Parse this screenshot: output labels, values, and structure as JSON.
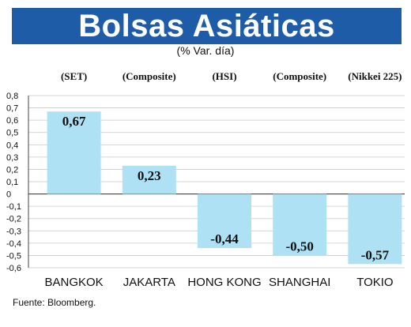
{
  "header": {
    "title": "Bolsas Asiáticas",
    "subtitle": "(% Var. día)"
  },
  "source": "Fuente: Bloomberg.",
  "colors": {
    "banner": "#1f5ca8",
    "bar": "#aee1f4",
    "grid": "#c8c8c8"
  },
  "chart_data": {
    "type": "bar",
    "title": "Bolsas Asiáticas",
    "subtitle": "(% Var. día)",
    "categories": [
      "BANGKOK",
      "JAKARTA",
      "HONG KONG",
      "SHANGHAI",
      "TOKIO"
    ],
    "index_labels": [
      "(SET)",
      "(Composite)",
      "(HSI)",
      "(Composite)",
      "(Nikkei 225)"
    ],
    "values": [
      0.67,
      0.23,
      -0.44,
      -0.5,
      -0.57
    ],
    "value_labels": [
      "0,67",
      "0,23",
      "-0,44",
      "-0,50",
      "-0,57"
    ],
    "ylim": [
      -0.6,
      0.8
    ],
    "yticks": [
      0.8,
      0.7,
      0.6,
      0.5,
      0.4,
      0.3,
      0.2,
      0.1,
      0,
      -0.1,
      -0.2,
      -0.3,
      -0.4,
      -0.5,
      -0.6
    ],
    "ytick_labels": [
      "0,8",
      "0,7",
      "0,6",
      "0,5",
      "0,4",
      "0,3",
      "0,2",
      "0,1",
      "0",
      "-0,1",
      "-0,2",
      "-0,3",
      "-0,4",
      "-0,5",
      "-0,6"
    ],
    "grid": true,
    "xlabel": "",
    "ylabel": ""
  }
}
